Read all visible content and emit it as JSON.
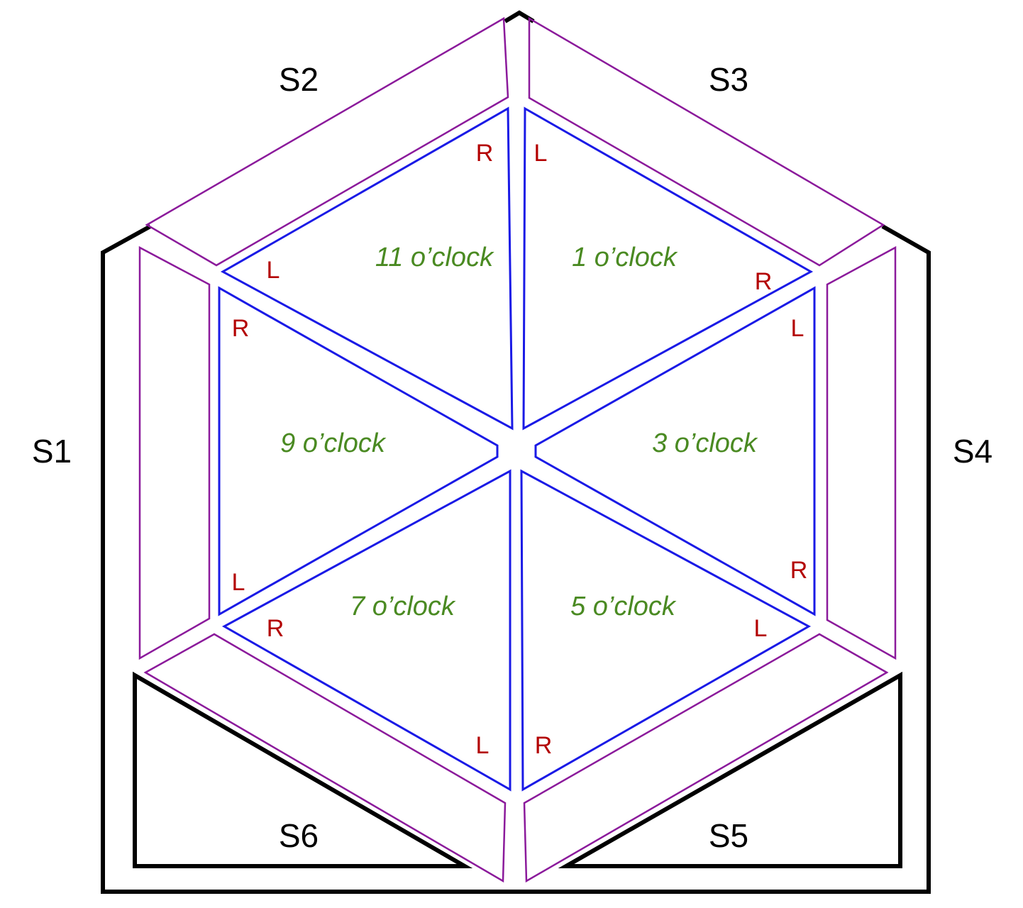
{
  "colors": {
    "frame": "#000000",
    "side_piece": "#8b1a9b",
    "triangle": "#1a1ae6",
    "segment_label": "#4a8a22",
    "corner_label": "#b30000"
  },
  "side_pieces": {
    "s1": "S1",
    "s2": "S2",
    "s3": "S3",
    "s4": "S4",
    "s5": "S5",
    "s6": "S6"
  },
  "segments": {
    "eleven": "11 o’clock",
    "one": "1 o’clock",
    "three": "3 o’clock",
    "five": "5 o’clock",
    "seven": "7 o’clock",
    "nine": "9 o’clock"
  },
  "corners": {
    "eleven_right": "R",
    "eleven_left": "L",
    "one_left": "L",
    "one_right": "R",
    "three_left": "L",
    "three_right": "R",
    "five_left": "L",
    "five_right": "R",
    "seven_left": "L",
    "seven_right": "R",
    "nine_right": "R",
    "nine_left": "L"
  }
}
